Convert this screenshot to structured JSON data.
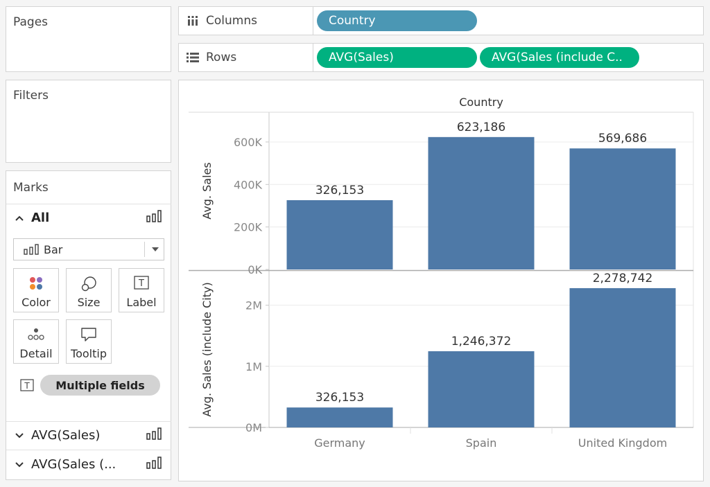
{
  "pages": {
    "title": "Pages"
  },
  "filters": {
    "title": "Filters"
  },
  "marks": {
    "title": "Marks",
    "all_label": "All",
    "mark_type": "Bar",
    "buttons": {
      "color": "Color",
      "size": "Size",
      "label": "Label",
      "detail": "Detail",
      "tooltip": "Tooltip"
    },
    "label_pill": "Multiple fields",
    "measures": [
      "AVG(Sales)",
      "AVG(Sales (..."
    ]
  },
  "shelves": {
    "columns": {
      "label": "Columns",
      "pills": [
        "Country"
      ]
    },
    "rows": {
      "label": "Rows",
      "pills": [
        "AVG(Sales)",
        "AVG(Sales (include C.."
      ]
    }
  },
  "colors": {
    "bar": "#4e79a7",
    "dimension_pill": "#4b97b4",
    "measure_pill": "#00b180"
  },
  "chart_data": {
    "type": "bar",
    "header": "Country",
    "categories": [
      "Germany",
      "Spain",
      "United Kingdom"
    ],
    "panes": [
      {
        "ylabel": "Avg. Sales",
        "ylim": [
          0,
          740000
        ],
        "ticks": [
          0,
          200000,
          400000,
          600000
        ],
        "tick_labels": [
          "0K",
          "200K",
          "400K",
          "600K"
        ],
        "values": [
          326153,
          623186,
          569686
        ],
        "data_labels": [
          "326,153",
          "623,186",
          "569,686"
        ]
      },
      {
        "ylabel": "Avg. Sales (include City)",
        "ylim": [
          0,
          2550000
        ],
        "ticks": [
          0,
          1000000,
          2000000
        ],
        "tick_labels": [
          "0M",
          "1M",
          "2M"
        ],
        "values": [
          326153,
          1246372,
          2278742
        ],
        "data_labels": [
          "326,153",
          "1,246,372",
          "2,278,742"
        ]
      }
    ]
  }
}
